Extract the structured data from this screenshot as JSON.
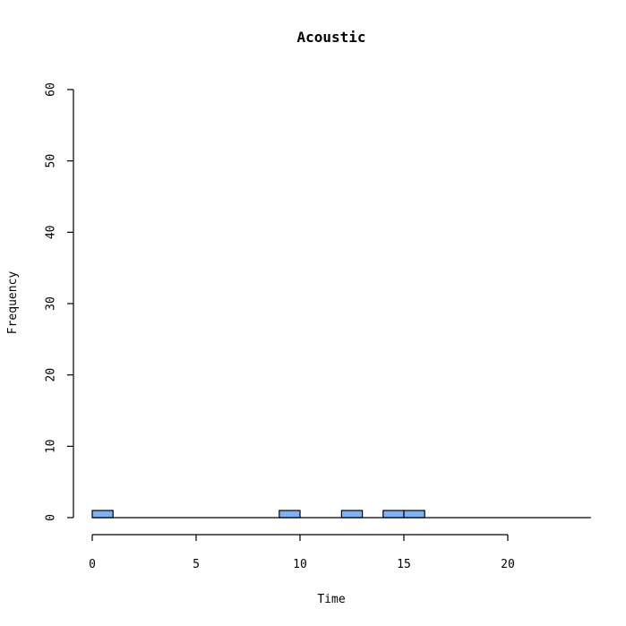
{
  "chart_data": {
    "type": "bar",
    "title": "Acoustic",
    "xlabel": "Time",
    "ylabel": "Frequency",
    "xlim": [
      0,
      24
    ],
    "ylim": [
      0,
      60
    ],
    "x_ticks": [
      0,
      5,
      10,
      15,
      20
    ],
    "y_ticks": [
      0,
      10,
      20,
      30,
      40,
      50,
      60
    ],
    "bin_width": 1,
    "bins": [
      {
        "start": 0,
        "end": 1,
        "count": 1
      },
      {
        "start": 9,
        "end": 10,
        "count": 1
      },
      {
        "start": 12,
        "end": 13,
        "count": 1
      },
      {
        "start": 14,
        "end": 15,
        "count": 1
      },
      {
        "start": 15,
        "end": 16,
        "count": 1
      }
    ],
    "bar_color": "#7EB2F5",
    "grid": false,
    "legend": "none"
  }
}
